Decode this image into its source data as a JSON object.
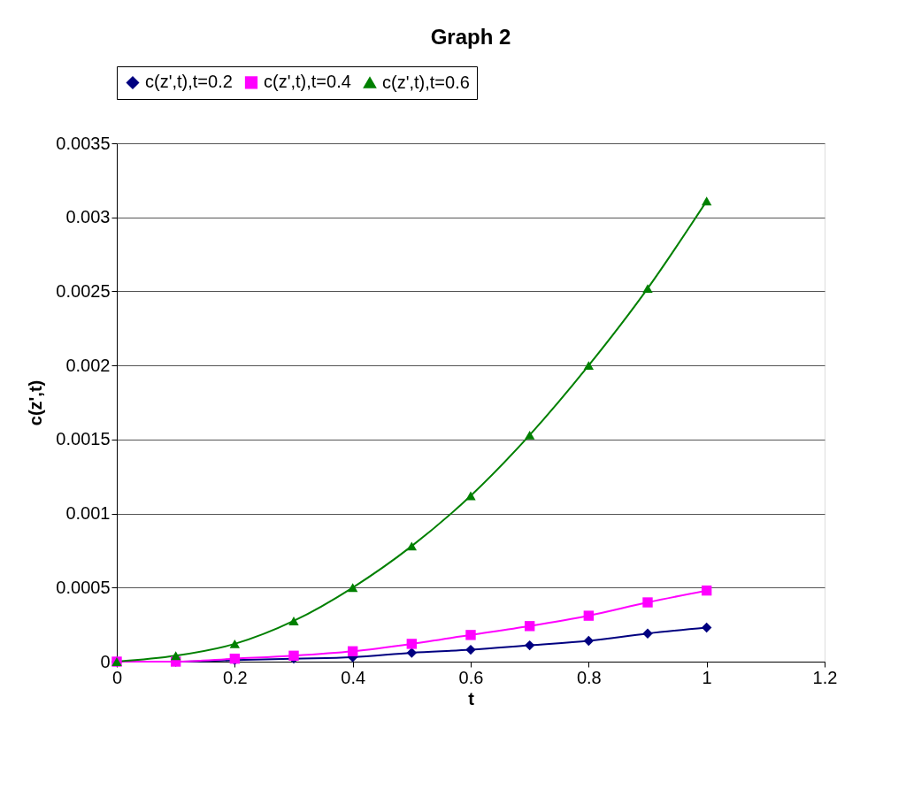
{
  "chart_data": {
    "type": "line",
    "title": "Graph 2",
    "xlabel": "t",
    "ylabel": "c(z',t)",
    "x": [
      0,
      0.1,
      0.2,
      0.3,
      0.4,
      0.5,
      0.6,
      0.7,
      0.8,
      0.9,
      1.0
    ],
    "series": [
      {
        "name": "c(z',t),t=0.2",
        "color": "#000080",
        "marker": "diamond",
        "values": [
          0,
          0,
          1e-05,
          2e-05,
          3e-05,
          6e-05,
          8e-05,
          0.00011,
          0.00014,
          0.00019,
          0.00023
        ]
      },
      {
        "name": "c(z',t),t=0.4",
        "color": "#ff00ff",
        "marker": "square",
        "values": [
          0,
          0,
          2e-05,
          4e-05,
          7e-05,
          0.00012,
          0.00018,
          0.00024,
          0.00031,
          0.0004,
          0.00048
        ]
      },
      {
        "name": "c(z',t),t=0.6",
        "color": "#008000",
        "marker": "triangle",
        "values": [
          0,
          4e-05,
          0.00012,
          0.000275,
          0.0005,
          0.00078,
          0.00112,
          0.00153,
          0.002,
          0.00252,
          0.00311
        ]
      }
    ],
    "xlim": [
      0,
      1.2
    ],
    "xticks": [
      0,
      0.2,
      0.4,
      0.6,
      0.8,
      1,
      1.2
    ],
    "ylim": [
      0,
      0.0035
    ],
    "yticks": [
      0,
      0.0005,
      0.001,
      0.0015,
      0.002,
      0.0025,
      0.003,
      0.0035
    ],
    "grid": "y",
    "legend": "top",
    "line_style": "solid"
  }
}
